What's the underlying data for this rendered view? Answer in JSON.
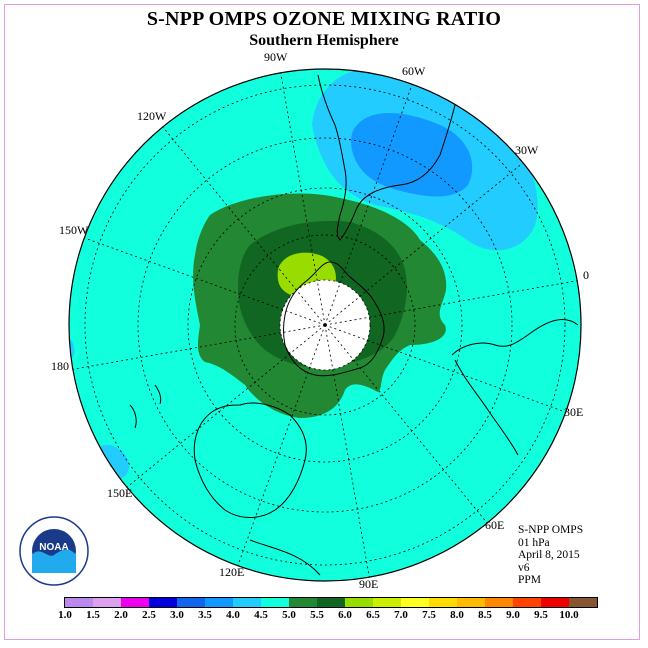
{
  "header": {
    "title": "S-NPP OMPS OZONE MIXING RATIO",
    "subtitle": "Southern Hemisphere"
  },
  "longitude_labels": {
    "l90w": "90W",
    "l60w": "60W",
    "l30w": "30W",
    "l0": "0",
    "l30e": "30E",
    "l60e": "60E",
    "l90e": "90E",
    "l120e": "120E",
    "l150e": "150E",
    "l180": "180",
    "l150w": "150W",
    "l120w": "120W"
  },
  "info": {
    "line1": "S-NPP OMPS",
    "line2": "01 hPa",
    "line3": "April 8, 2015",
    "line4": "v6",
    "line5": "PPM"
  },
  "logo": {
    "text": "NOAA",
    "icon": "noaa-logo"
  },
  "colorbar": {
    "labels": [
      "1.0",
      "1.5",
      "2.0",
      "2.5",
      "3.0",
      "3.5",
      "4.0",
      "4.5",
      "5.0",
      "5.5",
      "6.0",
      "6.5",
      "7.0",
      "7.5",
      "8.0",
      "8.5",
      "9.0",
      "9.5",
      "10.0"
    ],
    "colors": [
      "#bb88ee",
      "#dda0ee",
      "#ee00ee",
      "#0000dd",
      "#1166ee",
      "#1199ff",
      "#22ccff",
      "#11ffdd",
      "#228833",
      "#116622",
      "#99dd00",
      "#ccee00",
      "#ffff22",
      "#ffdd00",
      "#ffbb00",
      "#ff8800",
      "#ff4400",
      "#ee0000",
      "#885533"
    ]
  },
  "colors": {
    "background_field": "#11ffdd",
    "low_region": "#22ccff",
    "lower_region": "#1199ff",
    "ring_outer": "#228833",
    "ring_inner": "#116622",
    "spot": "#99dd00",
    "polar_hole": "#ffffff"
  }
}
